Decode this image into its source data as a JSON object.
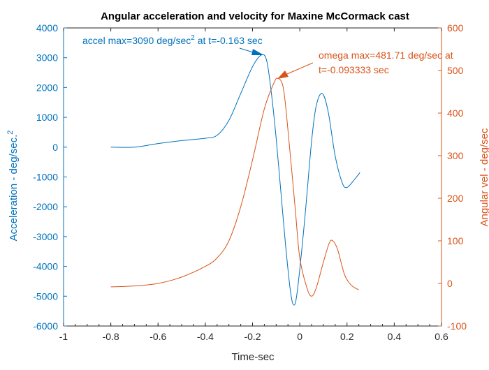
{
  "chart_data": {
    "type": "line",
    "title": "Angular acceleration and velocity for Maxine McCormack cast",
    "xlabel": "Time-sec",
    "ylabel_left": "Acceleration - deg/sec.",
    "ylabel_left_sup": "2",
    "ylabel_right": "Angular vel - deg/sec",
    "xlim": [
      -1,
      0.6
    ],
    "ylim_left": [
      -6000,
      4000
    ],
    "ylim_right": [
      -100,
      600
    ],
    "xticks": [
      "-1",
      "-0.8",
      "-0.6",
      "-0.4",
      "-0.2",
      "0",
      "0.2",
      "0.4",
      "0.6"
    ],
    "yticks_left": [
      "4000",
      "3000",
      "2000",
      "1000",
      "0",
      "-1000",
      "-2000",
      "-3000",
      "-4000",
      "-5000",
      "-6000"
    ],
    "yticks_right": [
      "600",
      "500",
      "400",
      "300",
      "200",
      "100",
      "0",
      "-100"
    ],
    "colors": {
      "accel": "#0072BD",
      "omega": "#D95319"
    },
    "series": [
      {
        "name": "acceleration",
        "axis": "left",
        "x": [
          -0.8,
          -0.7,
          -0.6,
          -0.5,
          -0.4,
          -0.35,
          -0.3,
          -0.25,
          -0.2,
          -0.163,
          -0.14,
          -0.12,
          -0.1,
          -0.08,
          -0.06,
          -0.04,
          -0.025,
          -0.01,
          0.02,
          0.05,
          0.07,
          0.095,
          0.12,
          0.15,
          0.18,
          0.2,
          0.23,
          0.255
        ],
        "y": [
          0,
          0,
          120,
          220,
          300,
          400,
          900,
          1800,
          2700,
          3090,
          2900,
          1800,
          300,
          -1500,
          -3300,
          -4800,
          -5300,
          -4800,
          -2500,
          200,
          1400,
          1800,
          1200,
          -300,
          -1200,
          -1350,
          -1100,
          -850
        ]
      },
      {
        "name": "omega",
        "axis": "right",
        "x": [
          -0.8,
          -0.7,
          -0.6,
          -0.5,
          -0.4,
          -0.35,
          -0.3,
          -0.25,
          -0.2,
          -0.15,
          -0.11,
          -0.093,
          -0.07,
          -0.05,
          -0.02,
          0,
          0.03,
          0.05,
          0.07,
          0.1,
          0.125,
          0.14,
          0.16,
          0.19,
          0.22,
          0.25
        ],
        "y": [
          -8,
          -6,
          0,
          15,
          40,
          60,
          100,
          180,
          290,
          410,
          470,
          481.7,
          460,
          360,
          180,
          60,
          -10,
          -30,
          -10,
          50,
          95,
          100,
          80,
          20,
          -5,
          -15
        ]
      }
    ],
    "annotations": {
      "accel_text": "accel max=3090 deg/sec",
      "accel_sup": "2",
      "accel_text2": " at t=-0.163 sec",
      "omega_line1": "omega max=481.71 deg/sec at",
      "omega_line2": "t=-0.093333 sec"
    }
  }
}
